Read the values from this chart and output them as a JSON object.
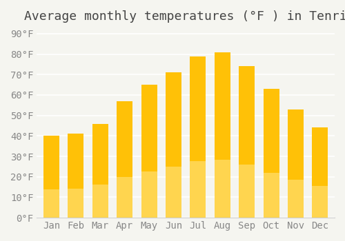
{
  "title": "Average monthly temperatures (°F ) in Tenri",
  "months": [
    "Jan",
    "Feb",
    "Mar",
    "Apr",
    "May",
    "Jun",
    "Jul",
    "Aug",
    "Sep",
    "Oct",
    "Nov",
    "Dec"
  ],
  "values": [
    40,
    41,
    46,
    57,
    65,
    71,
    79,
    81,
    74,
    63,
    53,
    44
  ],
  "bar_color_top": "#FFC107",
  "bar_color_bottom": "#FFD54F",
  "ylim": [
    0,
    92
  ],
  "yticks": [
    0,
    10,
    20,
    30,
    40,
    50,
    60,
    70,
    80,
    90
  ],
  "ytick_labels": [
    "0°F",
    "10°F",
    "20°F",
    "30°F",
    "40°F",
    "50°F",
    "60°F",
    "70°F",
    "80°F",
    "90°F"
  ],
  "background_color": "#f5f5f0",
  "grid_color": "#ffffff",
  "title_fontsize": 13,
  "tick_fontsize": 10,
  "font_family": "monospace"
}
